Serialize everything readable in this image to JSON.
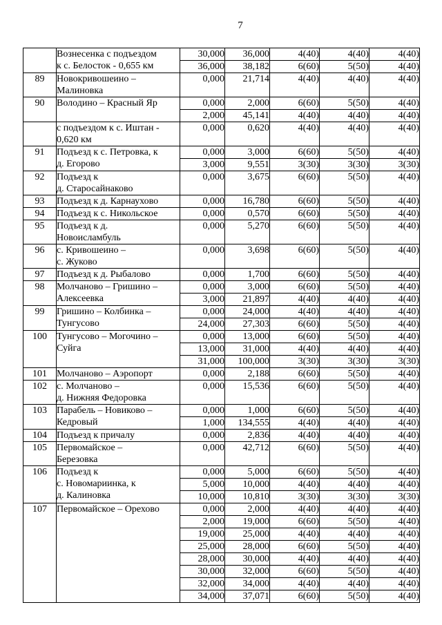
{
  "page": {
    "number": "7"
  },
  "table": {
    "entries": [
      {
        "num": "",
        "name": "Вознесенка с подъездом\nк с. Белосток - 0,655 км",
        "segments": [
          [
            "30,000",
            "36,000",
            "4(40)",
            "4(40)",
            "4(40)"
          ],
          [
            "36,000",
            "38,182",
            "6(60)",
            "5(50)",
            "4(40)"
          ]
        ]
      },
      {
        "num": "89",
        "name": "Новокривошеино –\nМалиновка",
        "segments": [
          [
            "0,000",
            "21,714",
            "4(40)",
            "4(40)",
            "4(40)"
          ]
        ]
      },
      {
        "num": "90",
        "name": "Володино – Красный Яр",
        "segments": [
          [
            "0,000",
            "2,000",
            "6(60)",
            "5(50)",
            "4(40)"
          ],
          [
            "2,000",
            "45,141",
            "4(40)",
            "4(40)",
            "4(40)"
          ]
        ]
      },
      {
        "num": "",
        "name": "с подъездом к с. Иштан -\n0,620 км",
        "segments": [
          [
            "0,000",
            "0,620",
            "4(40)",
            "4(40)",
            "4(40)"
          ]
        ]
      },
      {
        "num": "91",
        "name": "Подъезд к с. Петровка, к\nд. Егорово",
        "segments": [
          [
            "0,000",
            "3,000",
            "6(60)",
            "5(50)",
            "4(40)"
          ],
          [
            "3,000",
            "9,551",
            "3(30)",
            "3(30)",
            "3(30)"
          ]
        ]
      },
      {
        "num": "92",
        "name": "Подъезд к\nд. Старосайнаково",
        "segments": [
          [
            "0,000",
            "3,675",
            "6(60)",
            "5(50)",
            "4(40)"
          ]
        ]
      },
      {
        "num": "93",
        "name": "Подъезд к д. Карнаухово",
        "segments": [
          [
            "0,000",
            "16,780",
            "6(60)",
            "5(50)",
            "4(40)"
          ]
        ]
      },
      {
        "num": "94",
        "name": "Подъезд к с. Никольское",
        "segments": [
          [
            "0,000",
            "0,570",
            "6(60)",
            "5(50)",
            "4(40)"
          ]
        ]
      },
      {
        "num": "95",
        "name": "Подъезд к д.\nНовоисламбуль",
        "segments": [
          [
            "0,000",
            "5,270",
            "6(60)",
            "5(50)",
            "4(40)"
          ]
        ]
      },
      {
        "num": "96",
        "name": "с. Кривошеино –\nс. Жуково",
        "segments": [
          [
            "0,000",
            "3,698",
            "6(60)",
            "5(50)",
            "4(40)"
          ]
        ]
      },
      {
        "num": "97",
        "name": "Подъезд к д. Рыбалово",
        "segments": [
          [
            "0,000",
            "1,700",
            "6(60)",
            "5(50)",
            "4(40)"
          ]
        ]
      },
      {
        "num": "98",
        "name": "Молчаново – Гришино –\nАлексеевка",
        "segments": [
          [
            "0,000",
            "3,000",
            "6(60)",
            "5(50)",
            "4(40)"
          ],
          [
            "3,000",
            "21,897",
            "4(40)",
            "4(40)",
            "4(40)"
          ]
        ]
      },
      {
        "num": "99",
        "name": "Гришино – Колбинка –\nТунгусово",
        "segments": [
          [
            "0,000",
            "24,000",
            "4(40)",
            "4(40)",
            "4(40)"
          ],
          [
            "24,000",
            "27,303",
            "6(60)",
            "5(50)",
            "4(40)"
          ]
        ]
      },
      {
        "num": "100",
        "name": "Тунгусово – Могочино –\nСуйга",
        "segments": [
          [
            "0,000",
            "13,000",
            "6(60)",
            "5(50)",
            "4(40)"
          ],
          [
            "13,000",
            "31,000",
            "4(40)",
            "4(40)",
            "4(40)"
          ],
          [
            "31,000",
            "100,000",
            "3(30)",
            "3(30)",
            "3(30)"
          ]
        ]
      },
      {
        "num": "101",
        "name": "Молчаново – Аэропорт",
        "segments": [
          [
            "0,000",
            "2,188",
            "6(60)",
            "5(50)",
            "4(40)"
          ]
        ]
      },
      {
        "num": "102",
        "name": "с. Молчаново –\nд. Нижняя Федоровка",
        "segments": [
          [
            "0,000",
            "15,536",
            "6(60)",
            "5(50)",
            "4(40)"
          ]
        ]
      },
      {
        "num": "103",
        "name": "Парабель – Новиково –\nКедровый",
        "segments": [
          [
            "0,000",
            "1,000",
            "6(60)",
            "5(50)",
            "4(40)"
          ],
          [
            "1,000",
            "134,555",
            "4(40)",
            "4(40)",
            "4(40)"
          ]
        ]
      },
      {
        "num": "104",
        "name": "Подъезд к причалу",
        "segments": [
          [
            "0,000",
            "2,836",
            "4(40)",
            "4(40)",
            "4(40)"
          ]
        ]
      },
      {
        "num": "105",
        "name": "Первомайское –\nБерезовка",
        "segments": [
          [
            "0,000",
            "42,712",
            "6(60)",
            "5(50)",
            "4(40)"
          ]
        ]
      },
      {
        "num": "106",
        "name": "Подъезд к\nс. Новомариинка, к\nд. Калиновка",
        "segments": [
          [
            "0,000",
            "5,000",
            "6(60)",
            "5(50)",
            "4(40)"
          ],
          [
            "5,000",
            "10,000",
            "4(40)",
            "4(40)",
            "4(40)"
          ],
          [
            "10,000",
            "10,810",
            "3(30)",
            "3(30)",
            "3(30)"
          ]
        ]
      },
      {
        "num": "107",
        "name": "Первомайское – Орехово",
        "segments": [
          [
            "0,000",
            "2,000",
            "4(40)",
            "4(40)",
            "4(40)"
          ],
          [
            "2,000",
            "19,000",
            "6(60)",
            "5(50)",
            "4(40)"
          ],
          [
            "19,000",
            "25,000",
            "4(40)",
            "4(40)",
            "4(40)"
          ],
          [
            "25,000",
            "28,000",
            "6(60)",
            "5(50)",
            "4(40)"
          ],
          [
            "28,000",
            "30,000",
            "4(40)",
            "4(40)",
            "4(40)"
          ],
          [
            "30,000",
            "32,000",
            "6(60)",
            "5(50)",
            "4(40)"
          ],
          [
            "32,000",
            "34,000",
            "4(40)",
            "4(40)",
            "4(40)"
          ],
          [
            "34,000",
            "37,071",
            "6(60)",
            "5(50)",
            "4(40)"
          ]
        ]
      }
    ]
  }
}
